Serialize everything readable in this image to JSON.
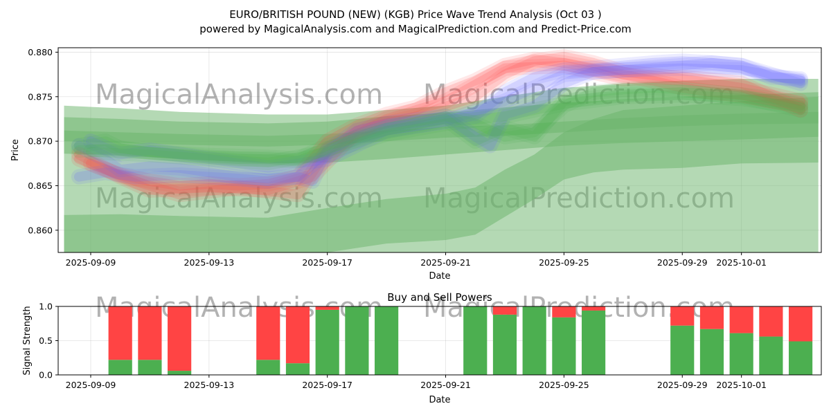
{
  "title_line1": "EURO/BRITISH POUND (NEW) (KGB) Price Wave Trend Analysis (Oct 03 )",
  "title_line2": "powered by MagicalAnalysis.com and MagicalPrediction.com and Predict-Price.com",
  "watermarks": [
    "MagicalAnalysis.com",
    "MagicalPrediction.com"
  ],
  "colors": {
    "green": "#4caf50",
    "red": "#ff4444",
    "blue": "#6666ff",
    "band": "#6ab46a"
  },
  "chart_data": [
    {
      "type": "line",
      "name": "price-wave-trend",
      "xlabel": "Date",
      "ylabel": "Price",
      "ylim": [
        0.8575,
        0.8805
      ],
      "xlim_days": [
        -1.1,
        24.7
      ],
      "x_origin": "2025-09-09",
      "x_ticks": [
        {
          "day": 0,
          "label": "2025-09-09"
        },
        {
          "day": 4,
          "label": "2025-09-13"
        },
        {
          "day": 8,
          "label": "2025-09-17"
        },
        {
          "day": 12,
          "label": "2025-09-21"
        },
        {
          "day": 16,
          "label": "2025-09-25"
        },
        {
          "day": 20,
          "label": "2025-09-29"
        },
        {
          "day": 22,
          "label": "2025-10-01"
        }
      ],
      "y_ticks": [
        {
          "value": 0.86,
          "label": "0.860"
        },
        {
          "value": 0.865,
          "label": "0.865"
        },
        {
          "value": 0.87,
          "label": "0.870"
        },
        {
          "value": 0.875,
          "label": "0.875"
        },
        {
          "value": 0.88,
          "label": "0.880"
        }
      ],
      "grid": true,
      "green_bands": [
        {
          "name": "outer-band",
          "x": [
            -0.9,
            1,
            3,
            6,
            8,
            10,
            12,
            13,
            14,
            15,
            16,
            17,
            18,
            20,
            22,
            24.6
          ],
          "upper": [
            0.874,
            0.8737,
            0.8733,
            0.873,
            0.873,
            0.8735,
            0.874,
            0.8745,
            0.875,
            0.8755,
            0.876,
            0.8762,
            0.8765,
            0.8768,
            0.877,
            0.877
          ],
          "lower": [
            0.8575,
            0.8575,
            0.8575,
            0.8575,
            0.8575,
            0.8575,
            0.8575,
            0.8575,
            0.8575,
            0.8575,
            0.8575,
            0.8575,
            0.8575,
            0.8575,
            0.8575,
            0.8575
          ]
        },
        {
          "name": "lower-wave",
          "x": [
            -0.9,
            1,
            3,
            6,
            8,
            10,
            12,
            13,
            14,
            15,
            16,
            17,
            18,
            20,
            22,
            24.6
          ],
          "upper": [
            0.8617,
            0.8618,
            0.8616,
            0.8614,
            0.8625,
            0.8635,
            0.8641,
            0.8648,
            0.8668,
            0.8685,
            0.871,
            0.8725,
            0.8735,
            0.874,
            0.8745,
            0.875
          ],
          "lower": [
            0.8575,
            0.8575,
            0.8575,
            0.8575,
            0.8575,
            0.8585,
            0.8589,
            0.8595,
            0.8615,
            0.8635,
            0.8657,
            0.8665,
            0.8668,
            0.867,
            0.8675,
            0.8676
          ]
        },
        {
          "name": "mid-band",
          "x": [
            -0.9,
            1,
            3,
            6,
            8,
            10,
            12,
            14,
            16,
            18,
            20,
            22,
            24.6
          ],
          "upper": [
            0.8727,
            0.8725,
            0.8722,
            0.872,
            0.8722,
            0.8728,
            0.8732,
            0.8738,
            0.8743,
            0.8747,
            0.875,
            0.8752,
            0.8755
          ],
          "lower": [
            0.8686,
            0.8684,
            0.868,
            0.8675,
            0.8676,
            0.868,
            0.8685,
            0.869,
            0.8695,
            0.8698,
            0.87,
            0.8702,
            0.8705
          ]
        },
        {
          "name": "inner-band",
          "x": [
            -0.9,
            1,
            3,
            6,
            8,
            10,
            12,
            14,
            16,
            18,
            20,
            22,
            24.6
          ],
          "upper": [
            0.8712,
            0.871,
            0.8708,
            0.8706,
            0.8708,
            0.8712,
            0.8716,
            0.8718,
            0.8722,
            0.8726,
            0.8729,
            0.8731,
            0.8733
          ],
          "lower": [
            0.87,
            0.8698,
            0.8696,
            0.8694,
            0.8696,
            0.87,
            0.8704,
            0.8706,
            0.871,
            0.8714,
            0.8717,
            0.8719,
            0.872
          ]
        }
      ],
      "series": [
        {
          "name": "red-wave-1",
          "color": "red",
          "x": [
            -0.4,
            0.5,
            1,
            2,
            3,
            4,
            5,
            6,
            7,
            8,
            9,
            10,
            11,
            12,
            13,
            14,
            15,
            16,
            17,
            18,
            19,
            20,
            21,
            22,
            23,
            24
          ],
          "values": [
            0.868,
            0.8668,
            0.8662,
            0.8655,
            0.865,
            0.8652,
            0.865,
            0.8652,
            0.866,
            0.87,
            0.8718,
            0.873,
            0.8738,
            0.8755,
            0.8768,
            0.8785,
            0.8792,
            0.8788,
            0.8782,
            0.8775,
            0.8768,
            0.876,
            0.8755,
            0.8752,
            0.8745,
            0.874
          ]
        },
        {
          "name": "red-wave-2",
          "color": "red",
          "x": [
            -0.4,
            1,
            2,
            4,
            6,
            7.5,
            9,
            11,
            13,
            14,
            15,
            16,
            17,
            18,
            20,
            22,
            24
          ],
          "values": [
            0.8685,
            0.866,
            0.8645,
            0.8648,
            0.8645,
            0.866,
            0.8712,
            0.8728,
            0.875,
            0.8775,
            0.879,
            0.8795,
            0.8788,
            0.8778,
            0.877,
            0.876,
            0.8745
          ]
        },
        {
          "name": "red-wave-3",
          "color": "red",
          "x": [
            0,
            1.5,
            3,
            5,
            7,
            8,
            10,
            12,
            14,
            16,
            18,
            20,
            22,
            24
          ],
          "values": [
            0.8675,
            0.8655,
            0.864,
            0.8648,
            0.864,
            0.869,
            0.8725,
            0.8745,
            0.8782,
            0.8785,
            0.877,
            0.8772,
            0.8765,
            0.8735
          ]
        },
        {
          "name": "blue-wave-1",
          "color": "blue",
          "x": [
            -0.4,
            0.5,
            1,
            2,
            3,
            4,
            5,
            6,
            7,
            8,
            9,
            10,
            11,
            12,
            13,
            14,
            15,
            16,
            17,
            18,
            19,
            20,
            21,
            22,
            23,
            24
          ],
          "values": [
            0.8695,
            0.868,
            0.8668,
            0.8672,
            0.867,
            0.8665,
            0.866,
            0.8658,
            0.866,
            0.8688,
            0.8705,
            0.8715,
            0.872,
            0.8725,
            0.8728,
            0.8755,
            0.8772,
            0.878,
            0.8782,
            0.8785,
            0.8788,
            0.879,
            0.8788,
            0.8785,
            0.8775,
            0.8765
          ]
        },
        {
          "name": "blue-wave-2",
          "color": "blue",
          "x": [
            -0.4,
            0.5,
            1.5,
            3,
            5,
            6,
            7,
            7.5,
            8,
            9,
            10,
            12,
            13,
            13.5,
            14,
            15,
            16,
            17,
            18,
            20,
            21,
            22,
            23,
            24
          ],
          "values": [
            0.866,
            0.8665,
            0.866,
            0.8662,
            0.8658,
            0.8655,
            0.866,
            0.8655,
            0.869,
            0.8712,
            0.872,
            0.8728,
            0.8705,
            0.8695,
            0.873,
            0.874,
            0.8765,
            0.8778,
            0.878,
            0.8785,
            0.8788,
            0.8785,
            0.8772,
            0.877
          ]
        },
        {
          "name": "blue-wave-3",
          "color": "blue",
          "x": [
            0,
            1,
            2,
            4,
            6,
            8,
            10,
            12,
            14,
            16,
            18,
            20,
            22,
            24
          ],
          "values": [
            0.87,
            0.8685,
            0.869,
            0.868,
            0.867,
            0.868,
            0.8712,
            0.8722,
            0.8745,
            0.8775,
            0.878,
            0.8782,
            0.878,
            0.8768
          ]
        },
        {
          "name": "green-wave-1",
          "color": "green",
          "x": [
            -0.4,
            0.5,
            1,
            2,
            3,
            4,
            5,
            6,
            7,
            8,
            9,
            10,
            11,
            12,
            13,
            14,
            15,
            16,
            17,
            18,
            19,
            20,
            21,
            22,
            23,
            24
          ],
          "values": [
            0.8695,
            0.87,
            0.8692,
            0.8688,
            0.8685,
            0.8682,
            0.868,
            0.868,
            0.8678,
            0.869,
            0.8705,
            0.8715,
            0.8722,
            0.8728,
            0.872,
            0.8705,
            0.871,
            0.874,
            0.8755,
            0.8758,
            0.876,
            0.8758,
            0.8755,
            0.8752,
            0.8748,
            0.874
          ]
        },
        {
          "name": "green-wave-2",
          "color": "green",
          "x": [
            -0.4,
            1,
            2,
            4,
            6,
            7,
            8,
            10,
            12,
            13,
            14,
            15,
            16,
            18,
            20,
            22,
            24
          ],
          "values": [
            0.869,
            0.8692,
            0.8688,
            0.8684,
            0.8682,
            0.868,
            0.8695,
            0.8712,
            0.8725,
            0.87,
            0.8715,
            0.8705,
            0.8745,
            0.8752,
            0.8755,
            0.875,
            0.8735
          ]
        },
        {
          "name": "green-wave-3",
          "color": "green",
          "x": [
            0,
            2,
            4,
            6,
            8,
            10,
            12,
            14,
            16,
            18,
            20,
            22,
            24
          ],
          "values": [
            0.8688,
            0.8685,
            0.868,
            0.8676,
            0.8688,
            0.8708,
            0.872,
            0.8728,
            0.8742,
            0.875,
            0.8752,
            0.8748,
            0.8738
          ]
        }
      ]
    },
    {
      "type": "bar",
      "name": "buy-sell-powers",
      "title": "Buy and Sell Powers",
      "xlabel": "Date",
      "ylabel": "Signal Strength",
      "ylim": [
        0,
        1
      ],
      "xlim_days": [
        -1.1,
        24.7
      ],
      "x_ticks": [
        {
          "day": 0,
          "label": "2025-09-09"
        },
        {
          "day": 4,
          "label": "2025-09-13"
        },
        {
          "day": 8,
          "label": "2025-09-17"
        },
        {
          "day": 12,
          "label": "2025-09-21"
        },
        {
          "day": 16,
          "label": "2025-09-25"
        },
        {
          "day": 20,
          "label": "2025-09-29"
        },
        {
          "day": 22,
          "label": "2025-10-01"
        }
      ],
      "y_ticks": [
        {
          "value": 0,
          "label": "0.0"
        },
        {
          "value": 0.5,
          "label": "0.5"
        },
        {
          "value": 1,
          "label": "1.0"
        }
      ],
      "series": [
        {
          "name": "Buy",
          "color": "green"
        },
        {
          "name": "Sell",
          "color": "red"
        }
      ],
      "bars": [
        {
          "day": 1,
          "buy": 0.22
        },
        {
          "day": 2,
          "buy": 0.22
        },
        {
          "day": 3,
          "buy": 0.06
        },
        {
          "day": 6,
          "buy": 0.22
        },
        {
          "day": 7,
          "buy": 0.17
        },
        {
          "day": 8,
          "buy": 0.95
        },
        {
          "day": 9,
          "buy": 1.0
        },
        {
          "day": 10,
          "buy": 1.0
        },
        {
          "day": 13,
          "buy": 1.0
        },
        {
          "day": 14,
          "buy": 0.88
        },
        {
          "day": 15,
          "buy": 1.0
        },
        {
          "day": 16,
          "buy": 0.84
        },
        {
          "day": 17,
          "buy": 0.94
        },
        {
          "day": 20,
          "buy": 0.72
        },
        {
          "day": 21,
          "buy": 0.67
        },
        {
          "day": 22,
          "buy": 0.61
        },
        {
          "day": 23,
          "buy": 0.56
        },
        {
          "day": 24,
          "buy": 0.49
        }
      ]
    }
  ]
}
